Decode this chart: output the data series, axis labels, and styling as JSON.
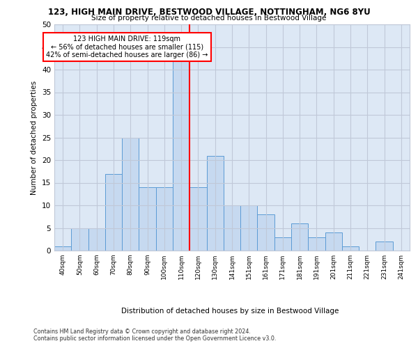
{
  "title1": "123, HIGH MAIN DRIVE, BESTWOOD VILLAGE, NOTTINGHAM, NG6 8YU",
  "title2": "Size of property relative to detached houses in Bestwood Village",
  "xlabel": "Distribution of detached houses by size in Bestwood Village",
  "ylabel": "Number of detached properties",
  "footer1": "Contains HM Land Registry data © Crown copyright and database right 2024.",
  "footer2": "Contains public sector information licensed under the Open Government Licence v3.0.",
  "annotation_title": "123 HIGH MAIN DRIVE: 119sqm",
  "annotation_line1": "← 56% of detached houses are smaller (115)",
  "annotation_line2": "42% of semi-detached houses are larger (86) →",
  "bar_labels": [
    "40sqm",
    "50sqm",
    "60sqm",
    "70sqm",
    "80sqm",
    "90sqm",
    "100sqm",
    "110sqm",
    "120sqm",
    "130sqm",
    "141sqm",
    "151sqm",
    "161sqm",
    "171sqm",
    "181sqm",
    "191sqm",
    "201sqm",
    "211sqm",
    "221sqm",
    "231sqm",
    "241sqm"
  ],
  "bar_values": [
    1,
    5,
    5,
    17,
    25,
    14,
    14,
    42,
    14,
    21,
    10,
    10,
    8,
    3,
    6,
    3,
    4,
    1,
    0,
    2,
    0
  ],
  "bar_color": "#c6d9f0",
  "bar_edge_color": "#5b9bd5",
  "property_line_x": 7.5,
  "property_line_color": "red",
  "ylim": [
    0,
    50
  ],
  "yticks": [
    0,
    5,
    10,
    15,
    20,
    25,
    30,
    35,
    40,
    45,
    50
  ],
  "grid_color": "#c0c8d8",
  "background_color": "#dde8f5",
  "annotation_box_color": "white",
  "annotation_box_edge_color": "red"
}
